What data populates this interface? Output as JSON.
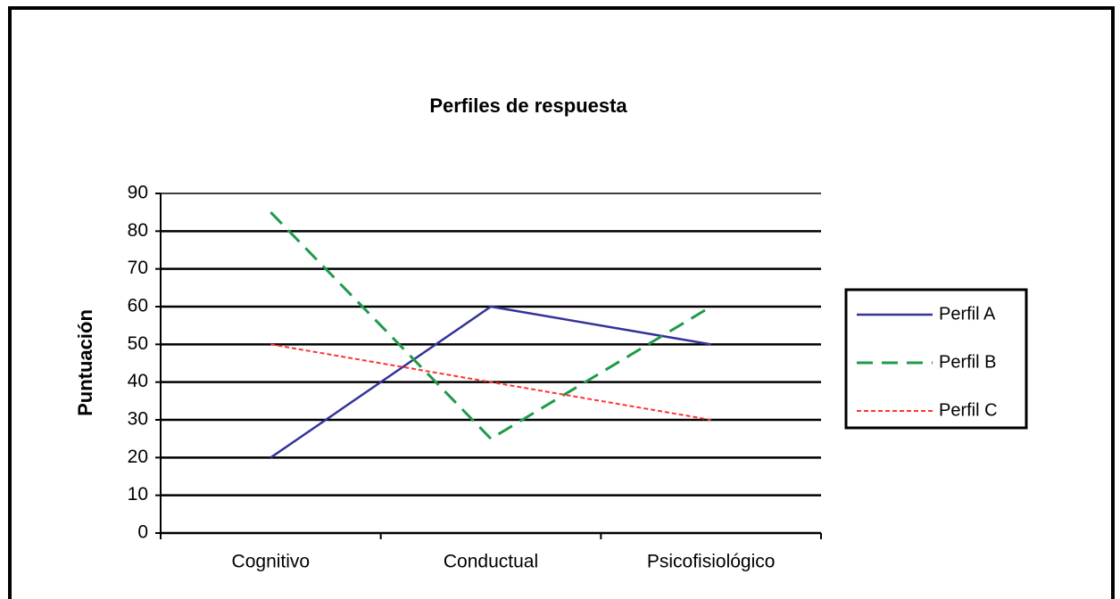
{
  "chart_data": {
    "type": "line",
    "title": "Perfiles de respuesta",
    "y_label": "Puntuación",
    "categories": [
      "Cognitivo",
      "Conductual",
      "Psicofisiológico"
    ],
    "series": [
      {
        "name": "Perfil A",
        "color": "#333399",
        "dash": "solid",
        "values": [
          20,
          60,
          50
        ]
      },
      {
        "name": "Perfil B",
        "color": "#1f9a4a",
        "dash": "dashed",
        "values": [
          85,
          25,
          60
        ]
      },
      {
        "name": "Perfil C",
        "color": "#ff3333",
        "dash": "dotted",
        "values": [
          50,
          40,
          30
        ]
      }
    ],
    "ylim": [
      0,
      90
    ],
    "yticks": [
      0,
      10,
      20,
      30,
      40,
      50,
      60,
      70,
      80,
      90
    ],
    "grid": true,
    "legend": "right"
  }
}
